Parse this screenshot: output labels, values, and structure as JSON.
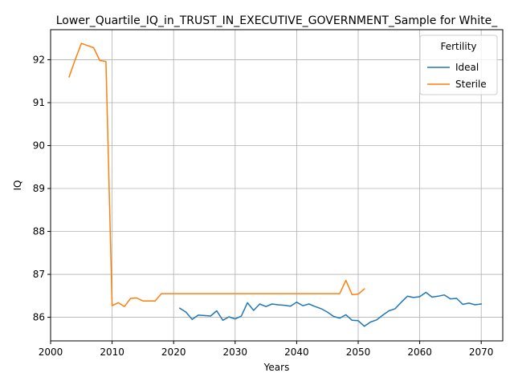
{
  "chart_data": {
    "type": "line",
    "title": "Lower_Quartile_IQ_in_TRUST_IN_EXECUTIVE_GOVERNMENT_Sample for White_",
    "xlabel": "Years",
    "ylabel": "IQ",
    "xlim": [
      2000,
      2073.5
    ],
    "ylim": [
      85.45,
      92.7
    ],
    "xticks": [
      2000,
      2010,
      2020,
      2030,
      2040,
      2050,
      2060,
      2070
    ],
    "yticks": [
      86,
      87,
      88,
      89,
      90,
      91,
      92
    ],
    "grid": true,
    "legend": {
      "title": "Fertility",
      "placement": "top-right"
    },
    "series": [
      {
        "name": "Ideal",
        "color": "#1f77b4",
        "x": [
          2021,
          2022,
          2023,
          2024,
          2025,
          2026,
          2027,
          2028,
          2029,
          2030,
          2031,
          2032,
          2033,
          2034,
          2035,
          2036,
          2037,
          2038,
          2039,
          2040,
          2041,
          2042,
          2043,
          2044,
          2045,
          2046,
          2047,
          2048,
          2049,
          2050,
          2051,
          2052,
          2053,
          2054,
          2055,
          2056,
          2057,
          2058,
          2059,
          2060,
          2061,
          2062,
          2063,
          2064,
          2065,
          2066,
          2067,
          2068,
          2069,
          2070
        ],
        "y": [
          86.21,
          86.12,
          85.95,
          86.05,
          86.04,
          86.03,
          86.15,
          85.93,
          86.01,
          85.96,
          86.03,
          86.34,
          86.16,
          86.31,
          86.25,
          86.31,
          86.29,
          86.28,
          86.26,
          86.35,
          86.27,
          86.31,
          86.25,
          86.2,
          86.12,
          86.02,
          85.98,
          86.06,
          85.93,
          85.92,
          85.79,
          85.89,
          85.94,
          86.05,
          86.15,
          86.2,
          86.35,
          86.49,
          86.46,
          86.48,
          86.58,
          86.47,
          86.49,
          86.52,
          86.43,
          86.44,
          86.3,
          86.33,
          86.29,
          86.31
        ]
      },
      {
        "name": "Sterile",
        "color": "#ff7f0e",
        "x": [
          2003,
          2004,
          2005,
          2006,
          2007,
          2008,
          2009,
          2010,
          2011,
          2012,
          2013,
          2014,
          2015,
          2016,
          2017,
          2018,
          2019,
          2020,
          2021,
          2022,
          2023,
          2024,
          2025,
          2026,
          2027,
          2028,
          2029,
          2030,
          2031,
          2032,
          2033,
          2034,
          2035,
          2036,
          2037,
          2038,
          2039,
          2040,
          2041,
          2042,
          2043,
          2044,
          2045,
          2046,
          2047,
          2048,
          2049,
          2050,
          2051
        ],
        "y": [
          91.6,
          92.0,
          92.38,
          92.33,
          92.28,
          91.98,
          91.96,
          86.27,
          86.34,
          86.25,
          86.44,
          86.45,
          86.38,
          86.38,
          86.38,
          86.55,
          86.55,
          86.55,
          86.55,
          86.55,
          86.55,
          86.55,
          86.55,
          86.55,
          86.55,
          86.55,
          86.55,
          86.55,
          86.55,
          86.55,
          86.55,
          86.55,
          86.55,
          86.55,
          86.55,
          86.55,
          86.55,
          86.55,
          86.55,
          86.55,
          86.55,
          86.55,
          86.55,
          86.55,
          86.55,
          86.86,
          86.53,
          86.54,
          86.66
        ]
      }
    ]
  }
}
